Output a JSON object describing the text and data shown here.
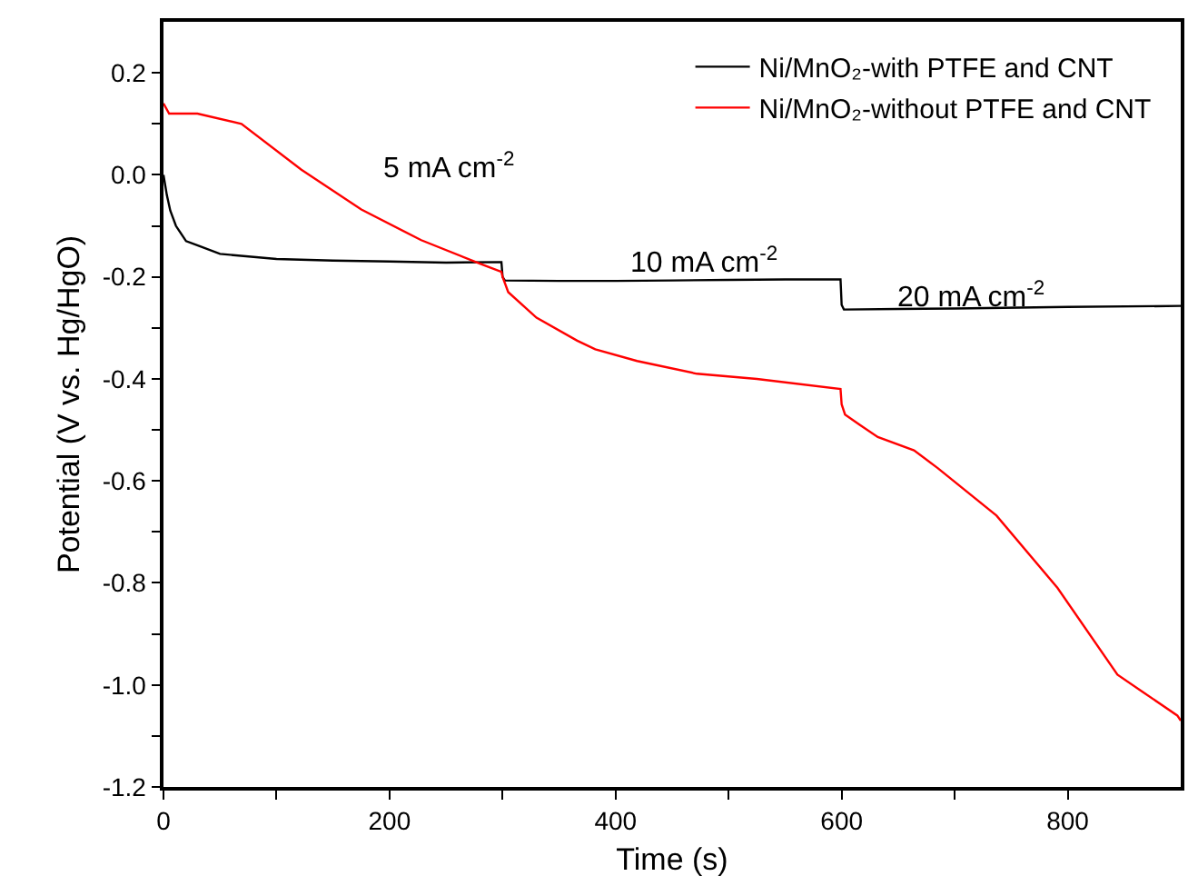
{
  "chart_data": {
    "type": "line",
    "xlabel": "Time (s)",
    "ylabel": "Potential (V vs. Hg/HgO)",
    "xlim": [
      0,
      900
    ],
    "ylim": [
      -1.2,
      0.3
    ],
    "xticks": [
      0,
      {
        "value": 100,
        "label": null
      },
      200,
      {
        "value": 300,
        "label": null
      },
      400,
      {
        "value": 500,
        "label": null
      },
      600,
      {
        "value": 700,
        "label": null
      },
      800
    ],
    "yticks": [
      {
        "value": -1.2,
        "label": "-1.2"
      },
      {
        "value": -1.1,
        "label": null
      },
      {
        "value": -1.0,
        "label": "-1.0"
      },
      {
        "value": -0.9,
        "label": null
      },
      {
        "value": -0.8,
        "label": "-0.8"
      },
      {
        "value": -0.7,
        "label": null
      },
      {
        "value": -0.6,
        "label": "-0.6"
      },
      {
        "value": -0.5,
        "label": null
      },
      {
        "value": -0.4,
        "label": "-0.4"
      },
      {
        "value": -0.3,
        "label": null
      },
      {
        "value": -0.2,
        "label": "-0.2"
      },
      {
        "value": -0.1,
        "label": null
      },
      {
        "value": 0.0,
        "label": "0.0"
      },
      {
        "value": 0.1,
        "label": null
      },
      {
        "value": 0.2,
        "label": "0.2"
      }
    ],
    "grid": false,
    "legend": "top right",
    "marker": "none",
    "line_style": "solid",
    "series": [
      {
        "name": "Ni/MnO₂-with PTFE and CNT",
        "color": "#000000",
        "x": [
          0,
          3,
          6,
          11,
          20,
          32,
          50,
          100,
          150,
          200,
          250,
          299,
          300,
          302,
          350,
          400,
          450,
          500,
          550,
          599,
          600,
          602,
          650,
          700,
          800,
          900
        ],
        "values": [
          0.0,
          -0.04,
          -0.07,
          -0.1,
          -0.13,
          -0.14,
          -0.155,
          -0.165,
          -0.168,
          -0.17,
          -0.172,
          -0.171,
          -0.2,
          -0.207,
          -0.208,
          -0.208,
          -0.207,
          -0.206,
          -0.205,
          -0.205,
          -0.255,
          -0.264,
          -0.263,
          -0.262,
          -0.259,
          -0.257
        ]
      },
      {
        "name": "Ni/MnO₂-without PTFE and CNT",
        "color": "#ff0000",
        "x": [
          0,
          5,
          16,
          30,
          69,
          122,
          175,
          228,
          281,
          299,
          300,
          305,
          330,
          366,
          382,
          419,
          472,
          525,
          599,
          600,
          603,
          616,
          632,
          664,
          685,
          737,
          791,
          844,
          897,
          900
        ],
        "values": [
          0.14,
          0.12,
          0.12,
          0.12,
          0.1,
          0.01,
          -0.068,
          -0.128,
          -0.175,
          -0.19,
          -0.2,
          -0.23,
          -0.28,
          -0.325,
          -0.342,
          -0.365,
          -0.39,
          -0.4,
          -0.42,
          -0.45,
          -0.47,
          -0.49,
          -0.514,
          -0.54,
          -0.575,
          -0.668,
          -0.81,
          -0.98,
          -1.06,
          -1.07
        ]
      }
    ],
    "annotations": [
      "5 mA cm$^{-2}$",
      "10 mA cm$^{-2}$",
      "20 mA cm$^{-2}$"
    ]
  }
}
